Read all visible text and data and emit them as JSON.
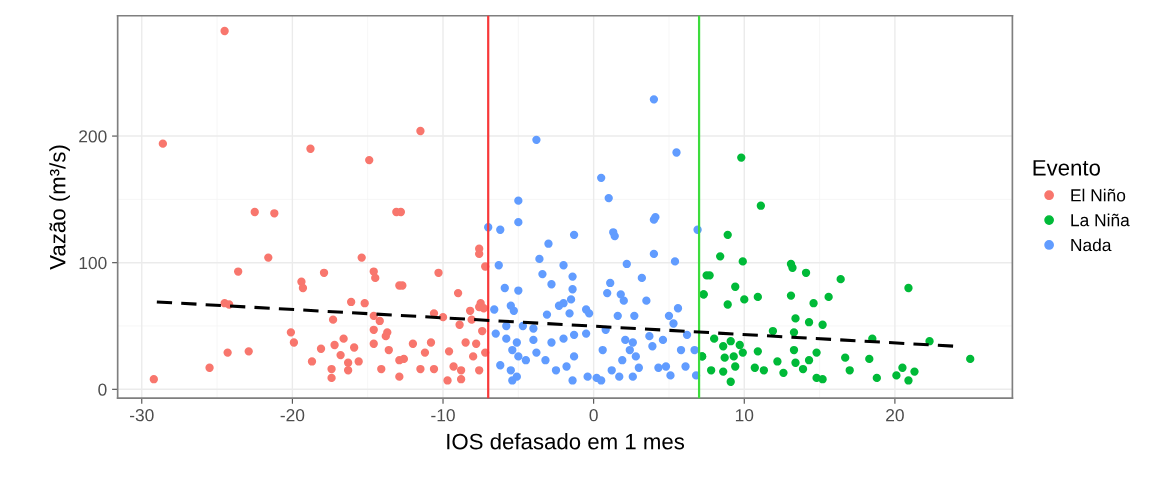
{
  "chart_data": {
    "type": "scatter",
    "xlabel": "IOS defasado em 1 mes",
    "ylabel": "Vazão (m³/s)",
    "legend_title": "Evento",
    "legend": "right",
    "grid": true,
    "marker": "circle",
    "xlim": [
      -31.6,
      27.8
    ],
    "ylim": [
      -7,
      295
    ],
    "xticks": [
      -30,
      -20,
      -10,
      0,
      10,
      20
    ],
    "yticks": [
      0,
      100,
      200
    ],
    "ref_lines": [
      {
        "axis": "x",
        "value": -7,
        "color": "#f8393a",
        "line_style": "solid"
      },
      {
        "axis": "x",
        "value": 7,
        "color": "#3ddc3d",
        "line_style": "solid"
      }
    ],
    "series": [
      {
        "name": "El Niño",
        "color": "#f8766d",
        "x": [
          -24.5,
          -28.6,
          -18.8,
          -14.9,
          -22.5,
          -21.2,
          -13.1,
          -21.6,
          -15.4,
          -23.6,
          -17.9,
          -14.6,
          -14.5,
          -19.4,
          -19.3,
          -12.9,
          -24.5,
          -24.2,
          -16.1,
          -15.2,
          -17.3,
          -14.6,
          -14.2,
          -14.6,
          -13.7,
          -20.1,
          -19.9,
          -13.8,
          -16.6,
          -17.2,
          -18.1,
          -15.9,
          -14.6,
          -13.6,
          -16.8,
          -18.7,
          -15.6,
          -16.3,
          -16.3,
          -17.4,
          -17.4,
          -14.1,
          -12.9,
          -12.9,
          -24.3,
          -22.9,
          -25.5,
          -29.2,
          -11.5,
          -12.8,
          -12.7,
          -10.3,
          -7.6,
          -7.6,
          -7.2,
          -9.0,
          -7.5,
          -7.6,
          -7.3,
          -8.2,
          -10.6,
          -10.0,
          -8.9,
          -8.1,
          -7.4,
          -12.0,
          -10.8,
          -11.2,
          -9.6,
          -8.5,
          -7.8,
          -12.6,
          -11.5,
          -10.6,
          -9.3,
          -8.8,
          -9.7,
          -8.8,
          -8.0,
          -7.6,
          -7.2
        ],
        "values": [
          283,
          194,
          190,
          181,
          140,
          139,
          140,
          104,
          104,
          93,
          92,
          93,
          88,
          85,
          80,
          82,
          68,
          67,
          69,
          68,
          55,
          58,
          54,
          47,
          45,
          45,
          37,
          42,
          40,
          35,
          32,
          33,
          36,
          31,
          27,
          22,
          22,
          21,
          15,
          16,
          9,
          16,
          23,
          10,
          29,
          30,
          17,
          8,
          204,
          140,
          82,
          92,
          111,
          107,
          97,
          76,
          68,
          65,
          64,
          62,
          60,
          57,
          51,
          55,
          46,
          36,
          37,
          29,
          30,
          37,
          36,
          24,
          16,
          16,
          18,
          15,
          7,
          8,
          26,
          15,
          29
        ]
      },
      {
        "name": "La Niña",
        "color": "#00ba38",
        "x": [
          7.5,
          7.3,
          7.2,
          9.8,
          11.1,
          8.9,
          8.4,
          9.9,
          7.7,
          7.3,
          9.4,
          8.9,
          10.0,
          10.9,
          13.1,
          13.2,
          14.1,
          16.4,
          13.1,
          14.6,
          15.6,
          20.9,
          13.4,
          14.3,
          15.2,
          11.9,
          13.3,
          8.0,
          9.1,
          18.5,
          22.3,
          25.0,
          7.2,
          8.6,
          9.7,
          8.7,
          9.3,
          9.9,
          7.8,
          8.6,
          9.1,
          9.4,
          10.9,
          10.7,
          11.3,
          12.2,
          12.6,
          13.3,
          13.4,
          13.9,
          14.3,
          14.8,
          14.8,
          15.2,
          16.7,
          17.0,
          18.3,
          18.8,
          20.1,
          20.5,
          21.3,
          20.9
        ],
        "values": [
          90,
          75,
          26,
          183,
          145,
          122,
          105,
          101,
          90,
          75,
          81,
          67,
          71,
          73,
          99,
          96,
          92,
          87,
          74,
          68,
          73,
          80,
          56,
          53,
          51,
          46,
          45,
          40,
          38,
          40,
          38,
          24,
          26,
          34,
          35,
          25,
          26,
          29,
          15,
          14,
          6,
          18,
          30,
          17,
          15,
          22,
          13,
          31,
          21,
          16,
          23,
          29,
          9,
          8,
          25,
          15,
          24,
          9,
          11,
          17,
          14,
          7
        ]
      },
      {
        "name": "Nada",
        "color": "#619cff",
        "x": [
          -7.0,
          -6.2,
          -5.0,
          -5.0,
          -3.8,
          4.0,
          5.5,
          0.5,
          1.0,
          -1.3,
          -3.0,
          1.3,
          1.4,
          4.0,
          4.1,
          4.0,
          5.4,
          6.9,
          -6.3,
          -3.6,
          -3.4,
          -2.0,
          -1.4,
          -2.8,
          -5.9,
          -5.0,
          -1.4,
          2.2,
          3.2,
          1.1,
          0.9,
          1.8,
          2.0,
          3.5,
          -2.0,
          -1.5,
          -2.3,
          -5.5,
          -5.3,
          -6.6,
          -3.1,
          -1.6,
          -0.5,
          -0.3,
          1.6,
          2.7,
          5.6,
          5.0,
          5.3,
          -5.8,
          -4.7,
          -4.0,
          -6.5,
          -5.8,
          -5.1,
          -4.0,
          -2.8,
          -2.0,
          -1.3,
          -0.5,
          0.8,
          2.1,
          2.6,
          3.7,
          4.6,
          -5.4,
          -5.0,
          -4.5,
          -6.2,
          -5.5,
          -5.4,
          -5.1,
          -3.8,
          -3.2,
          -2.5,
          -1.8,
          -1.4,
          -1.3,
          -0.4,
          0.2,
          0.6,
          0.5,
          1.2,
          1.7,
          1.9,
          2.4,
          2.8,
          3.0,
          2.6,
          4.3,
          4.8,
          5.1,
          3.9,
          5.8,
          6.1,
          6.7,
          6.8,
          6.2
        ],
        "values": [
          128,
          126,
          149,
          132,
          197,
          229,
          187,
          167,
          151,
          122,
          115,
          124,
          121,
          134,
          136,
          107,
          101,
          126,
          98,
          103,
          91,
          98,
          89,
          83,
          80,
          78,
          79,
          99,
          88,
          84,
          76,
          75,
          70,
          70,
          68,
          71,
          66,
          66,
          62,
          63,
          59,
          60,
          63,
          60,
          58,
          58,
          64,
          58,
          52,
          50,
          50,
          48,
          44,
          40,
          37,
          39,
          37,
          40,
          43,
          44,
          47,
          39,
          37,
          42,
          39,
          31,
          26,
          23,
          19,
          15,
          7,
          10,
          29,
          23,
          15,
          18,
          7,
          26,
          10,
          9,
          31,
          7,
          15,
          10,
          23,
          31,
          26,
          17,
          10,
          17,
          18,
          11,
          34,
          31,
          18,
          31,
          11,
          43
        ]
      },
      {
        "type": "line",
        "color": "#000000",
        "line_style": "dashed",
        "marker": "none",
        "x": [
          -29,
          24
        ],
        "values": [
          69,
          34
        ]
      }
    ]
  }
}
